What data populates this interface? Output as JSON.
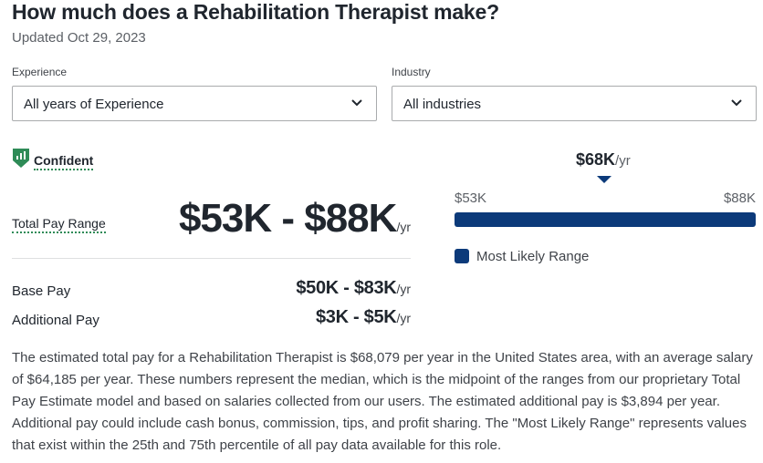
{
  "header": {
    "title": "How much does a Rehabilitation Therapist make?",
    "updated": "Updated Oct 29, 2023"
  },
  "filters": {
    "experience": {
      "label": "Experience",
      "value": "All years of Experience",
      "icon": "chevron-down-icon"
    },
    "industry": {
      "label": "Industry",
      "value": "All industries",
      "icon": "chevron-down-icon"
    }
  },
  "confidence": {
    "label": "Confident",
    "icon": "shield-bar-chart-icon",
    "color": "#2e8b57"
  },
  "total_pay": {
    "label": "Total Pay Range",
    "value": "$53K - $88K",
    "unit": "/yr"
  },
  "base_pay": {
    "label": "Base Pay",
    "value": "$50K - $83K",
    "unit": "/yr"
  },
  "additional_pay": {
    "label": "Additional Pay",
    "value": "$3K - $5K",
    "unit": "/yr"
  },
  "range_chart": {
    "median": "$68K",
    "median_unit": "/yr",
    "min_label": "$53K",
    "max_label": "$88K",
    "bar_color": "#0c3a7a",
    "legend": "Most Likely Range"
  },
  "description": "The estimated total pay for a Rehabilitation Therapist is $68,079 per year in the United States area, with an average salary of $64,185 per year. These numbers represent the median, which is the midpoint of the ranges from our proprietary Total Pay Estimate model and based on salaries collected from our users. The estimated additional pay is $3,894 per year. Additional pay could include cash bonus, commission, tips, and profit sharing. The \"Most Likely Range\" represents values that exist within the 25th and 75th percentile of all pay data available for this role."
}
